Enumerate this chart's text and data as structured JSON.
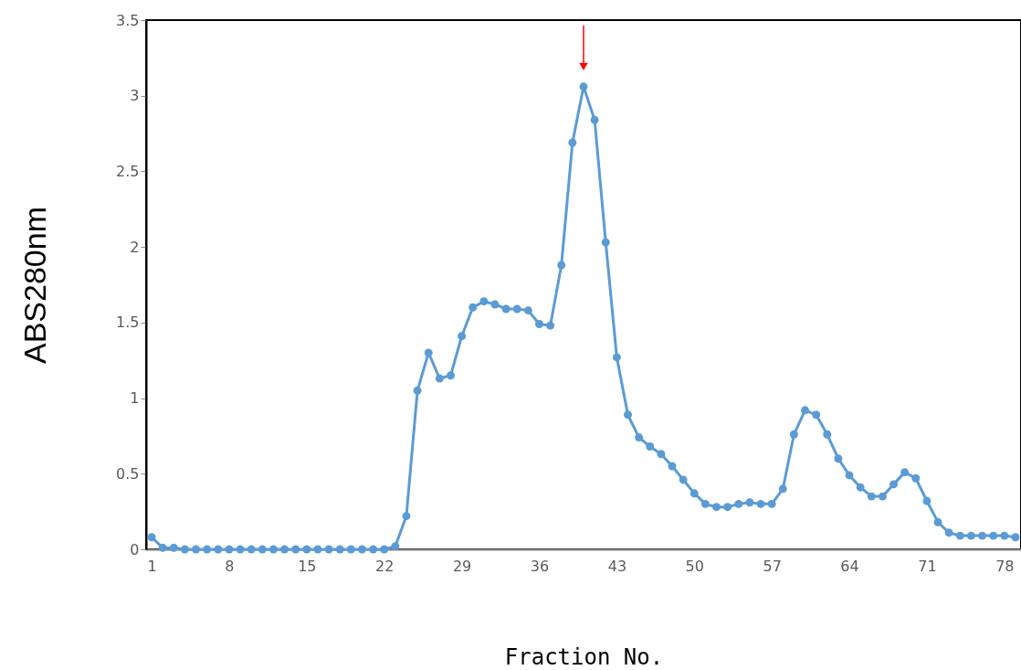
{
  "chart_data": {
    "type": "line",
    "xlabel": "Fraction No.",
    "ylabel": "ABS280nm",
    "categories": [
      "1",
      null,
      null,
      null,
      null,
      null,
      null,
      "8",
      null,
      null,
      null,
      null,
      null,
      null,
      "15",
      null,
      null,
      null,
      null,
      null,
      null,
      "22",
      null,
      null,
      null,
      null,
      null,
      null,
      "29",
      null,
      null,
      null,
      null,
      null,
      null,
      "36",
      null,
      null,
      null,
      null,
      null,
      null,
      "43",
      null,
      null,
      null,
      null,
      null,
      null,
      "50",
      null,
      null,
      null,
      null,
      null,
      null,
      "57",
      null,
      null,
      null,
      null,
      null,
      null,
      "64",
      null,
      null,
      null,
      null,
      null,
      null,
      "71",
      null,
      null,
      null,
      null,
      null,
      null,
      "78",
      null
    ],
    "series": [
      {
        "color": "#5b9bd5",
        "values": [
          0.08,
          0.01,
          0.01,
          0.0,
          0.0,
          0.0,
          0.0,
          0.0,
          0.0,
          0.0,
          0.0,
          0.0,
          0.0,
          0.0,
          0.0,
          0.0,
          0.0,
          0.0,
          0.0,
          0.0,
          0.0,
          0.0,
          0.02,
          0.22,
          1.05,
          1.3,
          1.13,
          1.15,
          1.41,
          1.6,
          1.64,
          1.62,
          1.59,
          1.59,
          1.58,
          1.49,
          1.48,
          1.88,
          2.69,
          3.06,
          2.84,
          2.03,
          1.27,
          0.89,
          0.74,
          0.68,
          0.63,
          0.55,
          0.46,
          0.37,
          0.3,
          0.28,
          0.28,
          0.3,
          0.31,
          0.3,
          0.3,
          0.4,
          0.76,
          0.92,
          0.89,
          0.76,
          0.6,
          0.49,
          0.41,
          0.35,
          0.35,
          0.43,
          0.51,
          0.47,
          0.32,
          0.18,
          0.11,
          0.09,
          0.09,
          0.09,
          0.09,
          0.09,
          0.08
        ]
      }
    ],
    "ylim": [
      0,
      3.5
    ],
    "yticks": [
      0,
      0.5,
      1,
      1.5,
      2,
      2.5,
      3,
      3.5
    ],
    "marker": "circle",
    "grid": false
  }
}
